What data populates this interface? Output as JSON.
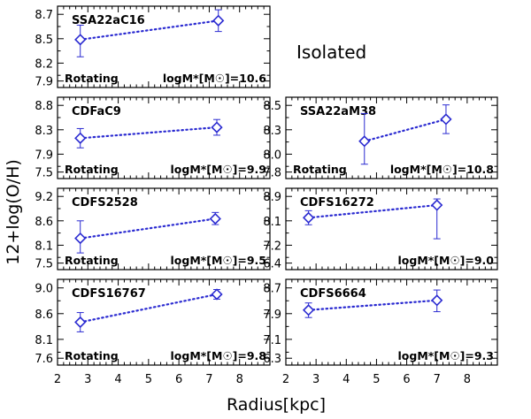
{
  "figure_label": "Isolated",
  "x_axis_label": "Radius[kpc]",
  "y_axis_label": "12+log(O/H)",
  "x_ticks": [
    2,
    3,
    4,
    5,
    6,
    7,
    8
  ],
  "colors": {
    "data": "#2b2bd1",
    "frame": "#000000"
  },
  "chart_data": [
    {
      "type": "scatter",
      "name": "SSA22aC16",
      "rotating": "Rotating",
      "mass": "logM*[M☉]=10.6",
      "xlim": [
        2,
        9
      ],
      "ylim": [
        7.85,
        8.75
      ],
      "yticks": [
        "8.7",
        "8.5",
        "8.2",
        "7.9"
      ],
      "points": [
        {
          "x": 2.75,
          "y": 8.38,
          "lo": 8.19,
          "hi": 8.54
        },
        {
          "x": 7.3,
          "y": 8.59,
          "lo": 8.47,
          "hi": 8.71
        }
      ]
    },
    {
      "type": "scatter",
      "name": "CDFaC9",
      "rotating": "Rotating",
      "mass": "logM*[M☉]=9.9",
      "xlim": [
        2,
        9
      ],
      "ylim": [
        7.5,
        8.85
      ],
      "yticks": [
        "8.8",
        "8.3",
        "7.9",
        "7.5"
      ],
      "points": [
        {
          "x": 2.75,
          "y": 8.17,
          "lo": 8.01,
          "hi": 8.33
        },
        {
          "x": 7.25,
          "y": 8.35,
          "lo": 8.22,
          "hi": 8.48
        }
      ]
    },
    {
      "type": "scatter",
      "name": "SSA22aM38",
      "rotating": "Rotating",
      "mass": "logM*[M☉]=10.8",
      "xlim": [
        2,
        9
      ],
      "ylim": [
        7.7,
        8.55
      ],
      "yticks": [
        "8.5",
        "8.3",
        "8.0",
        "7.8"
      ],
      "points": [
        {
          "x": 4.6,
          "y": 8.09,
          "lo": 7.85,
          "hi": 8.38
        },
        {
          "x": 7.3,
          "y": 8.32,
          "lo": 8.17,
          "hi": 8.47
        }
      ]
    },
    {
      "type": "scatter",
      "name": "CDFS2528",
      "rotating": "Rotating",
      "mass": "logM*[M☉]=9.5",
      "xlim": [
        2,
        9
      ],
      "ylim": [
        7.35,
        9.3
      ],
      "yticks": [
        "9.2",
        "8.6",
        "8.1",
        "7.5"
      ],
      "points": [
        {
          "x": 2.75,
          "y": 8.1,
          "lo": 7.75,
          "hi": 8.52
        },
        {
          "x": 7.2,
          "y": 8.57,
          "lo": 8.43,
          "hi": 8.72
        }
      ]
    },
    {
      "type": "scatter",
      "name": "CDFS16272",
      "rotating": "",
      "mass": "logM*[M☉]=9.0",
      "xlim": [
        2,
        9
      ],
      "ylim": [
        6.2,
        9.1
      ],
      "yticks": [
        "8.9",
        "8.1",
        "7.2",
        "6.4"
      ],
      "points": [
        {
          "x": 2.75,
          "y": 8.05,
          "lo": 7.8,
          "hi": 8.3
        },
        {
          "x": 7.0,
          "y": 8.5,
          "lo": 7.3,
          "hi": 8.72
        }
      ]
    },
    {
      "type": "scatter",
      "name": "CDFS16767",
      "rotating": "Rotating",
      "mass": "logM*[M☉]=9.8",
      "xlim": [
        2,
        9
      ],
      "ylim": [
        7.5,
        9.1
      ],
      "yticks": [
        "9.0",
        "8.6",
        "8.1",
        "7.6"
      ],
      "points": [
        {
          "x": 2.75,
          "y": 8.3,
          "lo": 8.12,
          "hi": 8.48
        },
        {
          "x": 7.25,
          "y": 8.82,
          "lo": 8.73,
          "hi": 8.91
        }
      ]
    },
    {
      "type": "scatter",
      "name": "CDFS6664",
      "rotating": "",
      "mass": "logM*[M☉]=9.3",
      "xlim": [
        2,
        9
      ],
      "ylim": [
        6.2,
        8.85
      ],
      "yticks": [
        "8.7",
        "7.9",
        "7.1",
        "6.3"
      ],
      "points": [
        {
          "x": 2.75,
          "y": 7.9,
          "lo": 7.67,
          "hi": 8.12
        },
        {
          "x": 7.0,
          "y": 8.2,
          "lo": 7.85,
          "hi": 8.52
        }
      ]
    }
  ]
}
